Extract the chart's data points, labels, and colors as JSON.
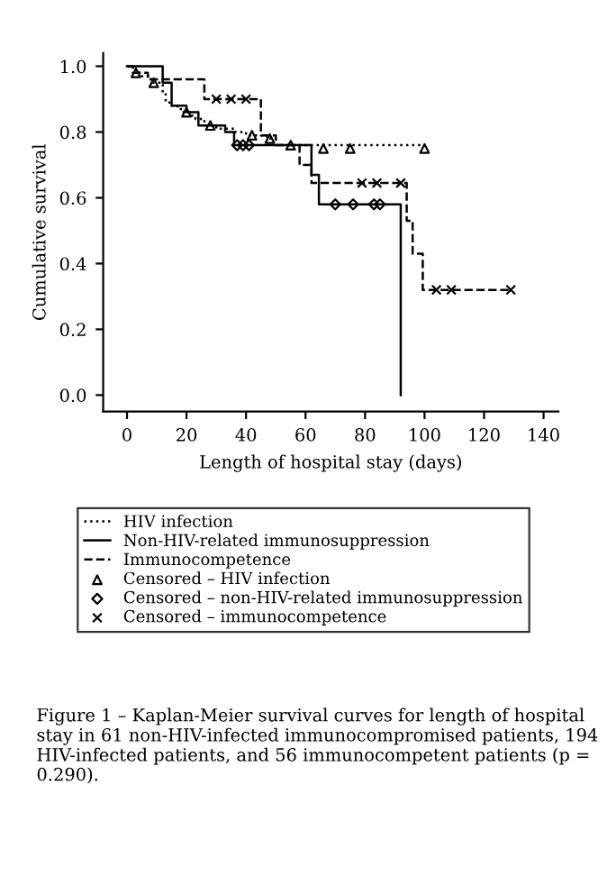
{
  "chart_data": {
    "type": "step",
    "xlabel": "Length of hospital stay (days)",
    "ylabel": "Cumulative survival",
    "xlim": [
      -8,
      145
    ],
    "ylim": [
      -0.05,
      1.04
    ],
    "xticks": [
      0,
      20,
      40,
      60,
      80,
      100,
      120,
      140
    ],
    "yticks": [
      {
        "value": 0,
        "label": "0.0"
      },
      {
        "value": 0.2,
        "label": "0.2"
      },
      {
        "value": 0.4,
        "label": "0.4"
      },
      {
        "value": 0.6,
        "label": "0.6"
      },
      {
        "value": 0.8,
        "label": "0.8"
      },
      {
        "value": 1,
        "label": "1.0"
      }
    ],
    "series": [
      {
        "name": "HIV infection",
        "color": "#000000",
        "line_style": "dotted",
        "x": [
          0,
          2,
          5,
          8,
          12,
          13,
          15,
          17,
          19,
          21,
          23,
          26,
          30,
          36,
          40,
          47,
          50,
          100
        ],
        "values": [
          1.0,
          0.98,
          0.97,
          0.95,
          0.92,
          0.89,
          0.88,
          0.87,
          0.86,
          0.85,
          0.84,
          0.82,
          0.81,
          0.8,
          0.79,
          0.78,
          0.76,
          0.75
        ]
      },
      {
        "name": "Non-HIV-related immunosuppression",
        "color": "#000000",
        "line_style": "solid",
        "x": [
          0,
          12,
          15,
          20,
          24,
          33,
          36,
          62,
          64.5,
          92
        ],
        "values": [
          1.0,
          0.95,
          0.88,
          0.86,
          0.82,
          0.8,
          0.76,
          0.67,
          0.58,
          0.0
        ]
      },
      {
        "name": "Immunocompetence",
        "color": "#000000",
        "line_style": "dashed",
        "x": [
          0,
          2,
          7,
          26,
          45,
          50,
          58,
          62,
          94,
          96,
          99.4,
          129
        ],
        "values": [
          1.0,
          0.98,
          0.96,
          0.9,
          0.79,
          0.76,
          0.7,
          0.645,
          0.53,
          0.43,
          0.32,
          0.32
        ]
      },
      {
        "name": "Censored – HIV infection",
        "type": "scatter",
        "marker": "triangle",
        "color": "#000000",
        "x": [
          3,
          9,
          20,
          28,
          42,
          48,
          55,
          66,
          75,
          100
        ],
        "values": [
          0.98,
          0.95,
          0.86,
          0.82,
          0.79,
          0.78,
          0.76,
          0.75,
          0.75,
          0.75
        ]
      },
      {
        "name": "Censored – non-HIV-related immunosuppression",
        "type": "scatter",
        "marker": "diamond",
        "color": "#000000",
        "x": [
          37,
          39,
          41,
          70,
          76,
          83,
          85
        ],
        "values": [
          0.76,
          0.76,
          0.76,
          0.58,
          0.58,
          0.58,
          0.58
        ]
      },
      {
        "name": "Censored – immunocompetence",
        "type": "scatter",
        "marker": "cross",
        "color": "#000000",
        "x": [
          30,
          35,
          40,
          79,
          84,
          92,
          104,
          109,
          129
        ],
        "values": [
          0.9,
          0.9,
          0.9,
          0.645,
          0.645,
          0.645,
          0.32,
          0.32,
          0.32
        ]
      }
    ],
    "legend": "bottom",
    "annotations": [
      "Figure 1 – Kaplan-Meier survival curves for length of hospital stay in 61 non-HIV-infected immunocompromised patients, 194 HIV-infected patients, and 56 immunocompetent patients (p = 0.290)."
    ]
  }
}
